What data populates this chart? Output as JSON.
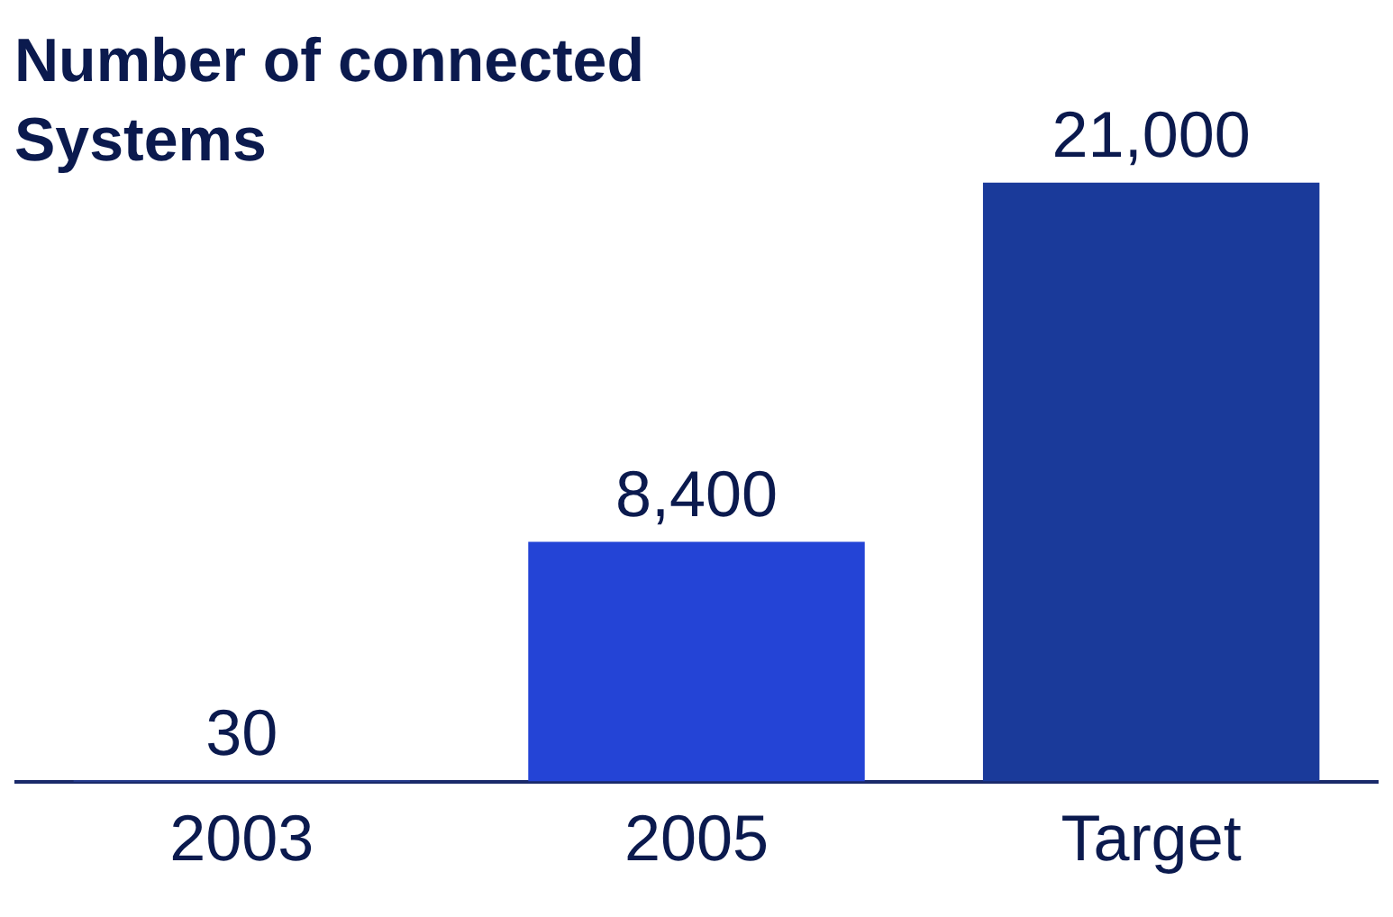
{
  "chart_data": {
    "type": "bar",
    "title": "Number of connected Systems",
    "categories": [
      "2003",
      "2005",
      "Target"
    ],
    "values": [
      30,
      8400,
      21000
    ],
    "colors": [
      "#4a6cf0",
      "#2444d6",
      "#1a3a9a"
    ],
    "value_labels": [
      "30",
      "8,400",
      "21,000"
    ],
    "grid": false
  }
}
